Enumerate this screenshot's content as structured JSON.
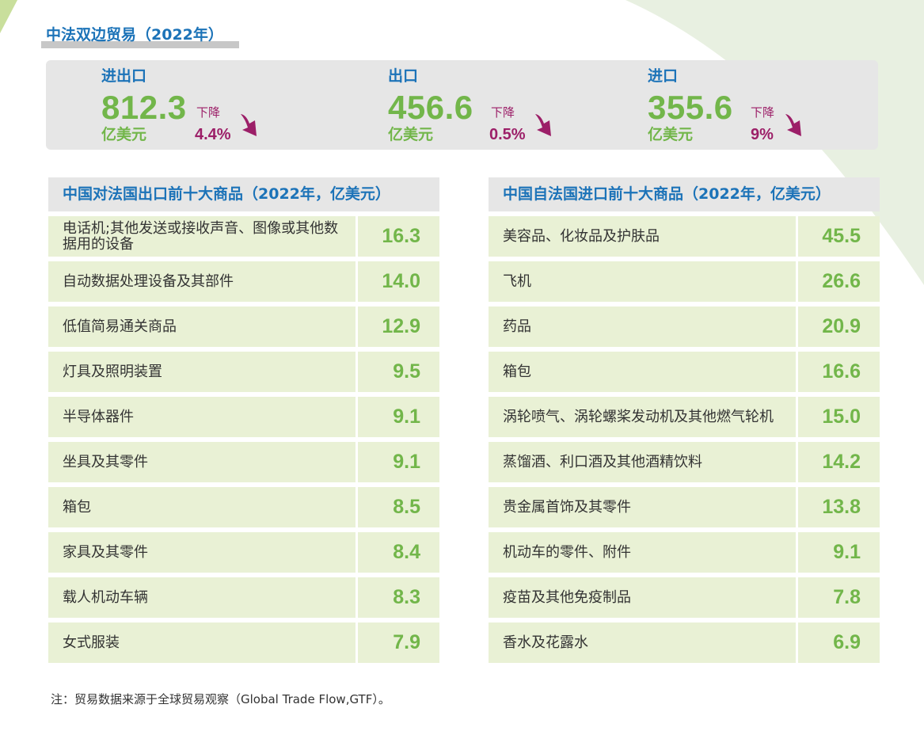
{
  "title": "中法双边贸易（2022年）",
  "summary": [
    {
      "label": "进出口",
      "value": "812.3",
      "unit": "亿美元",
      "change_label": "下降",
      "change_value": "4.4%"
    },
    {
      "label": "出口",
      "value": "456.6",
      "unit": "亿美元",
      "change_label": "下降",
      "change_value": "0.5%"
    },
    {
      "label": "进口",
      "value": "355.6",
      "unit": "亿美元",
      "change_label": "下降",
      "change_value": "9%"
    }
  ],
  "export_table": {
    "header": "中国对法国出口前十大商品（2022年，亿美元）",
    "rows": [
      {
        "name": "电话机;其他发送或接收声音、图像或其他数据用的设备",
        "value": "16.3"
      },
      {
        "name": "自动数据处理设备及其部件",
        "value": "14.0"
      },
      {
        "name": "低值简易通关商品",
        "value": "12.9"
      },
      {
        "name": "灯具及照明装置",
        "value": "9.5"
      },
      {
        "name": "半导体器件",
        "value": "9.1"
      },
      {
        "name": "坐具及其零件",
        "value": "9.1"
      },
      {
        "name": "箱包",
        "value": "8.5"
      },
      {
        "name": "家具及其零件",
        "value": "8.4"
      },
      {
        "name": "载人机动车辆",
        "value": "8.3"
      },
      {
        "name": "女式服装",
        "value": "7.9"
      }
    ]
  },
  "import_table": {
    "header": "中国自法国进口前十大商品（2022年，亿美元）",
    "rows": [
      {
        "name": "美容品、化妆品及护肤品",
        "value": "45.5"
      },
      {
        "name": "飞机",
        "value": "26.6"
      },
      {
        "name": "药品",
        "value": "20.9"
      },
      {
        "name": "箱包",
        "value": "16.6"
      },
      {
        "name": "涡轮喷气、涡轮螺桨发动机及其他燃气轮机",
        "value": "15.0"
      },
      {
        "name": "蒸馏酒、利口酒及其他酒精饮料",
        "value": "14.2"
      },
      {
        "name": "贵金属首饰及其零件",
        "value": "13.8"
      },
      {
        "name": "机动车的零件、附件",
        "value": "9.1"
      },
      {
        "name": "疫苗及其他免疫制品",
        "value": "7.8"
      },
      {
        "name": "香水及花露水",
        "value": "6.9"
      }
    ]
  },
  "note": "注：贸易数据来源于全球贸易观察（Global Trade Flow,GTF）。",
  "icons": {
    "decline": "arrow-down-right-icon"
  },
  "colors": {
    "accent_blue": "#1c73b8",
    "value_green": "#72b64a",
    "decline_magenta": "#9c1f68",
    "row_bg": "#e9f1d5",
    "panel_bg": "#e6e6e6"
  }
}
